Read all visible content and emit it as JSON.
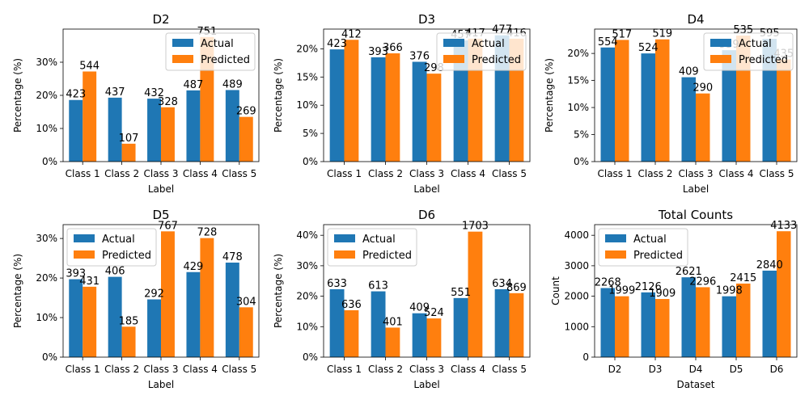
{
  "colors": {
    "actual": "#1f77b4",
    "predicted": "#ff7f0e"
  },
  "chart_data": [
    {
      "type": "bar",
      "title": "D2",
      "xlabel": "Label",
      "ylabel": "Percentage (%)",
      "ylim": [
        0,
        40
      ],
      "yticks": [
        0,
        10,
        20,
        30
      ],
      "ytick_labels": [
        "0%",
        "10%",
        "20%",
        "30%"
      ],
      "categories": [
        "Class 1",
        "Class 2",
        "Class 3",
        "Class 4",
        "Class 5"
      ],
      "legend": "top-right",
      "series": [
        {
          "name": "Actual",
          "values": [
            18.6,
            19.3,
            19.0,
            21.5,
            21.6
          ],
          "labels": [
            "423",
            "437",
            "432",
            "487",
            "489"
          ]
        },
        {
          "name": "Predicted",
          "values": [
            27.2,
            5.4,
            16.4,
            37.6,
            13.5
          ],
          "labels": [
            "544",
            "107",
            "328",
            "751",
            "269"
          ]
        }
      ]
    },
    {
      "type": "bar",
      "title": "D3",
      "xlabel": "Label",
      "ylabel": "Percentage (%)",
      "ylim": [
        0,
        23.5
      ],
      "yticks": [
        0,
        5,
        10,
        15,
        20
      ],
      "ytick_labels": [
        "0%",
        "5%",
        "10%",
        "15%",
        "20%"
      ],
      "categories": [
        "Class 1",
        "Class 2",
        "Class 3",
        "Class 4",
        "Class 5"
      ],
      "legend": "top-right",
      "series": [
        {
          "name": "Actual",
          "values": [
            19.9,
            18.5,
            17.7,
            21.5,
            22.4
          ],
          "labels": [
            "423",
            "393",
            "376",
            "457",
            "477"
          ]
        },
        {
          "name": "Predicted",
          "values": [
            21.6,
            19.2,
            15.6,
            21.8,
            21.8
          ],
          "labels": [
            "412",
            "366",
            "298",
            "417",
            "416"
          ]
        }
      ]
    },
    {
      "type": "bar",
      "title": "D4",
      "xlabel": "Label",
      "ylabel": "Percentage (%)",
      "ylim": [
        0,
        24.5
      ],
      "yticks": [
        0,
        5,
        10,
        15,
        20
      ],
      "ytick_labels": [
        "0%",
        "5%",
        "10%",
        "15%",
        "20%"
      ],
      "categories": [
        "Class 1",
        "Class 2",
        "Class 3",
        "Class 4",
        "Class 5"
      ],
      "legend": "top-right",
      "series": [
        {
          "name": "Actual",
          "values": [
            21.1,
            20.0,
            15.6,
            20.6,
            22.7
          ],
          "labels": [
            "554",
            "524",
            "409",
            "539",
            "595"
          ]
        },
        {
          "name": "Predicted",
          "values": [
            22.5,
            22.6,
            12.6,
            23.3,
            18.9
          ],
          "labels": [
            "517",
            "519",
            "290",
            "535",
            "435"
          ]
        }
      ]
    },
    {
      "type": "bar",
      "title": "D5",
      "xlabel": "Label",
      "ylabel": "Percentage (%)",
      "ylim": [
        0,
        33.5
      ],
      "yticks": [
        0,
        10,
        20,
        30
      ],
      "ytick_labels": [
        "0%",
        "10%",
        "20%",
        "30%"
      ],
      "categories": [
        "Class 1",
        "Class 2",
        "Class 3",
        "Class 4",
        "Class 5"
      ],
      "legend": "top-left",
      "series": [
        {
          "name": "Actual",
          "values": [
            19.7,
            20.3,
            14.6,
            21.5,
            23.9
          ],
          "labels": [
            "393",
            "406",
            "292",
            "429",
            "478"
          ]
        },
        {
          "name": "Predicted",
          "values": [
            17.8,
            7.7,
            31.8,
            30.1,
            12.6
          ],
          "labels": [
            "431",
            "185",
            "767",
            "728",
            "304"
          ]
        }
      ]
    },
    {
      "type": "bar",
      "title": "D6",
      "xlabel": "Label",
      "ylabel": "Percentage (%)",
      "ylim": [
        0,
        43.5
      ],
      "yticks": [
        0,
        10,
        20,
        30,
        40
      ],
      "ytick_labels": [
        "0%",
        "10%",
        "20%",
        "30%",
        "40%"
      ],
      "categories": [
        "Class 1",
        "Class 2",
        "Class 3",
        "Class 4",
        "Class 5"
      ],
      "legend": "top-left",
      "series": [
        {
          "name": "Actual",
          "values": [
            22.3,
            21.6,
            14.4,
            19.4,
            22.3
          ],
          "labels": [
            "633",
            "613",
            "409",
            "551",
            "634"
          ]
        },
        {
          "name": "Predicted",
          "values": [
            15.4,
            9.7,
            12.7,
            41.2,
            21.0
          ],
          "labels": [
            "636",
            "401",
            "524",
            "1703",
            "869"
          ]
        }
      ]
    },
    {
      "type": "bar",
      "title": "Total Counts",
      "xlabel": "Dataset",
      "ylabel": "Count",
      "ylim": [
        0,
        4350
      ],
      "yticks": [
        0,
        1000,
        2000,
        3000,
        4000
      ],
      "ytick_labels": [
        "0",
        "1000",
        "2000",
        "3000",
        "4000"
      ],
      "categories": [
        "D2",
        "D3",
        "D4",
        "D5",
        "D6"
      ],
      "legend": "top-left",
      "series": [
        {
          "name": "Actual",
          "values": [
            2268,
            2126,
            2621,
            1998,
            2840
          ],
          "labels": [
            "2268",
            "2126",
            "2621",
            "1998",
            "2840"
          ]
        },
        {
          "name": "Predicted",
          "values": [
            1999,
            1909,
            2296,
            2415,
            4133
          ],
          "labels": [
            "1999",
            "1909",
            "2296",
            "2415",
            "4133"
          ]
        }
      ]
    }
  ]
}
